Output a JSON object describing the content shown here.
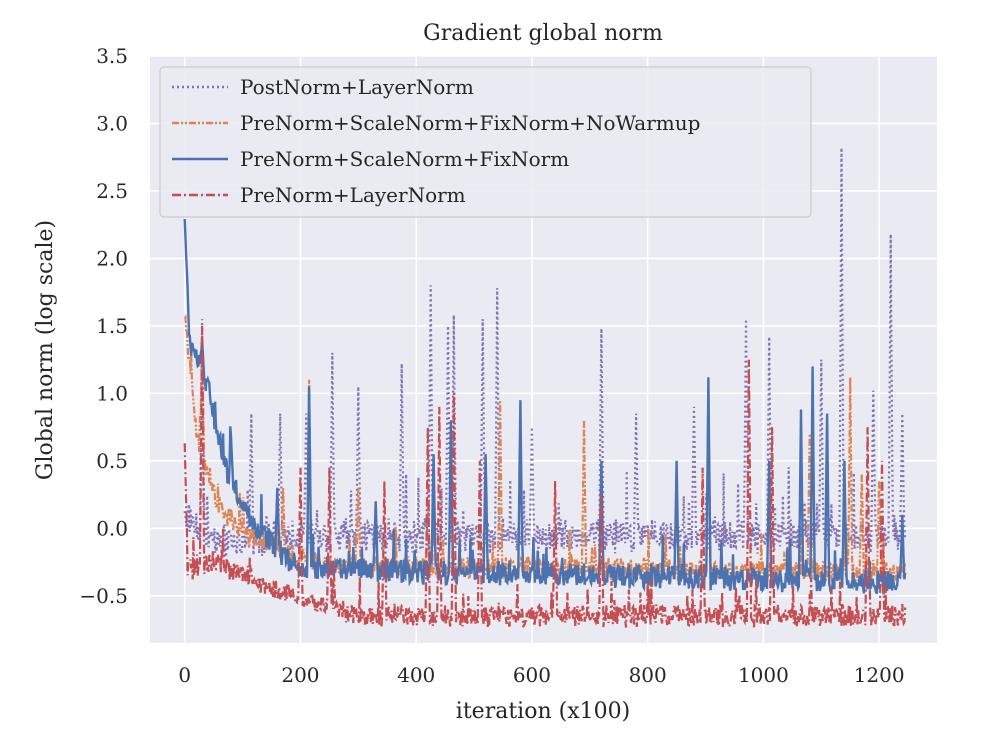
{
  "chart_data": {
    "type": "line",
    "title": "Gradient global norm",
    "xlabel": "iteration (x100)",
    "ylabel": "Global norm (log scale)",
    "xlim": [
      -60,
      1300
    ],
    "ylim": [
      -0.85,
      3.5
    ],
    "x_ticks": [
      0,
      200,
      400,
      600,
      800,
      1000,
      1200
    ],
    "y_ticks": [
      -0.5,
      0.0,
      0.5,
      1.0,
      1.5,
      2.0,
      2.5,
      3.0,
      3.5
    ],
    "x_tick_labels": [
      "0",
      "200",
      "400",
      "600",
      "800",
      "1000",
      "1200"
    ],
    "y_tick_labels": [
      "−0.5",
      "0.0",
      "0.5",
      "1.0",
      "1.5",
      "2.0",
      "2.5",
      "3.0",
      "3.5"
    ],
    "grid": true,
    "legend_position": "top-left",
    "background_color": "#EAEAF2",
    "series": [
      {
        "name": "PostNorm+LayerNorm",
        "color": "#8172B3",
        "style": "dotted",
        "x_end": 1245,
        "start": 0.1,
        "decay": [
          [
            0,
            0.1
          ],
          [
            60,
            -0.1
          ],
          [
            200,
            -0.05
          ],
          [
            1245,
            -0.05
          ]
        ],
        "noise": 0.11,
        "spikes": [
          [
            30,
            1.55
          ],
          [
            115,
            0.85
          ],
          [
            165,
            0.85
          ],
          [
            210,
            0.85
          ],
          [
            255,
            1.3
          ],
          [
            300,
            1.05
          ],
          [
            375,
            1.22
          ],
          [
            425,
            1.8
          ],
          [
            455,
            1.5
          ],
          [
            465,
            1.58
          ],
          [
            515,
            1.55
          ],
          [
            540,
            1.78
          ],
          [
            600,
            0.75
          ],
          [
            720,
            1.48
          ],
          [
            780,
            0.85
          ],
          [
            880,
            0.9
          ],
          [
            970,
            1.55
          ],
          [
            1010,
            1.42
          ],
          [
            1100,
            1.25
          ],
          [
            1135,
            2.82
          ],
          [
            1190,
            1.02
          ],
          [
            1220,
            2.18
          ],
          [
            1240,
            0.85
          ]
        ]
      },
      {
        "name": "PreNorm+ScaleNorm+FixNorm+NoWarmup",
        "color": "#DD8452",
        "style": "dashdotdot",
        "x_end": 1245,
        "start": 1.6,
        "decay": [
          [
            0,
            1.6
          ],
          [
            20,
            0.7
          ],
          [
            60,
            0.15
          ],
          [
            120,
            -0.1
          ],
          [
            250,
            -0.28
          ],
          [
            1245,
            -0.32
          ]
        ],
        "noise": 0.07,
        "spikes": [
          [
            30,
            1.4
          ],
          [
            170,
            0.3
          ],
          [
            215,
            1.1
          ],
          [
            300,
            0.3
          ],
          [
            420,
            0.2
          ],
          [
            545,
            0.95
          ],
          [
            690,
            0.8
          ],
          [
            905,
            1.05
          ],
          [
            1080,
            0.7
          ],
          [
            1150,
            1.12
          ],
          [
            1170,
            0.4
          ],
          [
            1200,
            0.35
          ]
        ]
      },
      {
        "name": "PreNorm+ScaleNorm+FixNorm",
        "color": "#4C72B0",
        "style": "solid",
        "x_end": 1245,
        "start": 2.3,
        "decay": [
          [
            0,
            2.3
          ],
          [
            8,
            1.4
          ],
          [
            40,
            1.05
          ],
          [
            70,
            0.45
          ],
          [
            120,
            0.0
          ],
          [
            200,
            -0.3
          ],
          [
            1245,
            -0.4
          ]
        ],
        "noise": 0.08,
        "spikes": [
          [
            30,
            1.4
          ],
          [
            80,
            0.68
          ],
          [
            160,
            0.3
          ],
          [
            215,
            1.05
          ],
          [
            330,
            0.2
          ],
          [
            430,
            0.55
          ],
          [
            460,
            0.8
          ],
          [
            520,
            0.55
          ],
          [
            580,
            0.95
          ],
          [
            720,
            0.5
          ],
          [
            850,
            0.5
          ],
          [
            905,
            1.12
          ],
          [
            1010,
            0.5
          ],
          [
            1065,
            0.88
          ],
          [
            1085,
            1.2
          ],
          [
            1110,
            0.85
          ],
          [
            1140,
            0.5
          ],
          [
            1240,
            0.1
          ]
        ]
      },
      {
        "name": "PreNorm+LayerNorm",
        "color": "#C44E52",
        "style": "dashdot",
        "x_end": 1245,
        "start": 0.6,
        "decay": [
          [
            0,
            0.6
          ],
          [
            5,
            -0.3
          ],
          [
            50,
            -0.25
          ],
          [
            150,
            -0.45
          ],
          [
            300,
            -0.65
          ],
          [
            1245,
            -0.65
          ]
        ],
        "noise": 0.07,
        "spikes": [
          [
            30,
            1.5
          ],
          [
            200,
            0.45
          ],
          [
            250,
            0.45
          ],
          [
            345,
            0.35
          ],
          [
            420,
            0.75
          ],
          [
            440,
            0.9
          ],
          [
            465,
            1.0
          ],
          [
            510,
            0.5
          ],
          [
            640,
            0.35
          ],
          [
            720,
            0.25
          ],
          [
            895,
            0.45
          ],
          [
            975,
            1.25
          ],
          [
            1015,
            0.75
          ],
          [
            1180,
            0.75
          ],
          [
            1205,
            0.5
          ]
        ]
      }
    ]
  }
}
